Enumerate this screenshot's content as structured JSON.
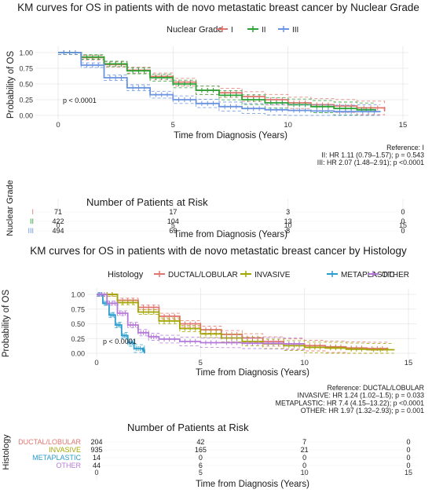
{
  "chart_data": [
    {
      "type": "line",
      "subtype": "kaplan-meier",
      "title": "KM curves for OS in patients with de novo metastatic breast cancer by Nuclear Grade",
      "legend_title": "Nuclear Grade",
      "legend_position": "top",
      "xlabel": "Time from Diagnosis (Years)",
      "ylabel": "Probability of OS",
      "xlim": [
        0,
        15
      ],
      "ylim": [
        0,
        1
      ],
      "x_ticks": [
        "0",
        "5",
        "10",
        "15"
      ],
      "y_ticks": [
        "0.00",
        "0.25",
        "0.50",
        "0.75",
        "1.00"
      ],
      "grid": true,
      "pvalue": "p < 0.0001",
      "series": [
        {
          "name": "I",
          "color": "#e0756f",
          "x": [
            0,
            1,
            2,
            3,
            4,
            5,
            6,
            7,
            8,
            9,
            10,
            11,
            12,
            13,
            14.2,
            14.2
          ],
          "y": [
            1.0,
            0.92,
            0.81,
            0.72,
            0.62,
            0.53,
            0.4,
            0.36,
            0.3,
            0.25,
            0.2,
            0.17,
            0.15,
            0.12,
            0.1,
            0.07
          ]
        },
        {
          "name": "II",
          "color": "#2aa335",
          "x": [
            0,
            1,
            2,
            3,
            4,
            5,
            6,
            7,
            8,
            9,
            10,
            11,
            12,
            13,
            13.8
          ],
          "y": [
            1.0,
            0.93,
            0.82,
            0.71,
            0.6,
            0.5,
            0.4,
            0.32,
            0.25,
            0.2,
            0.17,
            0.14,
            0.11,
            0.09,
            0.07
          ]
        },
        {
          "name": "III",
          "color": "#6a93e0",
          "x": [
            0,
            1,
            2,
            3,
            4,
            5,
            6,
            7,
            8,
            9,
            10,
            11,
            12,
            13,
            14
          ],
          "y": [
            1.0,
            0.8,
            0.6,
            0.44,
            0.33,
            0.25,
            0.19,
            0.14,
            0.11,
            0.09,
            0.08,
            0.07,
            0.06,
            0.06,
            0.05
          ]
        }
      ],
      "reference": [
        "Reference: I",
        "II: HR 1.11 (0.79–1.57); p = 0.543",
        "III: HR 2.07 (1.48–2.91); p <0.0001"
      ],
      "risk_table": {
        "title": "Number of Patients at Risk",
        "ylabel": "Nuclear Grade",
        "xlabel": "Time from Diagnosis (Years)",
        "times": [
          "0",
          "5",
          "10",
          "15"
        ],
        "rows": [
          {
            "label": "I",
            "color": "#e0756f",
            "counts": [
              "71",
              "17",
              "3",
              "0"
            ]
          },
          {
            "label": "II",
            "color": "#2aa335",
            "counts": [
              "422",
              "104",
              "13",
              "0"
            ]
          },
          {
            "label": "III",
            "color": "#6a93e0",
            "counts": [
              "494",
              "69",
              "8",
              "0"
            ]
          }
        ]
      }
    },
    {
      "type": "line",
      "subtype": "kaplan-meier",
      "title": "KM curves for OS in patients with de novo metastatic breast cancer by Histology",
      "legend_title": "Histology",
      "legend_position": "top",
      "xlabel": "Time from Diagnosis (Years)",
      "ylabel": "Probability of OS",
      "xlim": [
        0,
        15
      ],
      "ylim": [
        0,
        1
      ],
      "x_ticks": [
        "0",
        "5",
        "10",
        "15"
      ],
      "y_ticks": [
        "0.00",
        "0.25",
        "0.50",
        "0.75",
        "1.00"
      ],
      "grid": true,
      "pvalue": "p < 0.0001",
      "series": [
        {
          "name": "DUCTAL/LOBULAR",
          "color": "#e0756f",
          "x": [
            0,
            1,
            2,
            3,
            4,
            5,
            6,
            7,
            8,
            9,
            10,
            11,
            12,
            13,
            14
          ],
          "y": [
            1.0,
            0.9,
            0.78,
            0.63,
            0.5,
            0.4,
            0.32,
            0.26,
            0.2,
            0.16,
            0.13,
            0.11,
            0.09,
            0.08,
            0.07
          ]
        },
        {
          "name": "INVASIVE",
          "color": "#a3a500",
          "x": [
            0,
            1,
            2,
            3,
            4,
            5,
            6,
            7,
            8,
            9,
            10,
            11,
            12,
            13,
            14.3
          ],
          "y": [
            1.0,
            0.86,
            0.7,
            0.55,
            0.42,
            0.33,
            0.26,
            0.2,
            0.16,
            0.13,
            0.1,
            0.09,
            0.07,
            0.06,
            0.05
          ]
        },
        {
          "name": "METAPLASTIC",
          "color": "#2a9dcf",
          "x": [
            0,
            0.3,
            0.6,
            0.9,
            1.2,
            1.5,
            1.8,
            2.2,
            2.3
          ],
          "y": [
            1.0,
            0.85,
            0.65,
            0.48,
            0.3,
            0.18,
            0.08,
            0.06,
            0.0
          ]
        },
        {
          "name": "OTHER",
          "color": "#b57ad9",
          "x": [
            0,
            0.5,
            1,
            1.5,
            2,
            2.5,
            3,
            4,
            5,
            6,
            7,
            8,
            9,
            10
          ],
          "y": [
            1.0,
            0.85,
            0.68,
            0.48,
            0.35,
            0.28,
            0.24,
            0.2,
            0.18,
            0.18,
            0.17,
            0.17,
            0.16,
            0.16
          ]
        }
      ],
      "reference": [
        "Reference: DUCTAL/LOBULAR",
        "INVASIVE: HR 1.24 (1.02–1.5); p = 0.033",
        "METAPLASTIC: HR 7.4 (4.15–13.22); p <0.0001",
        "OTHER: HR 1.97 (1.32–2.93); p = 0.001"
      ],
      "risk_table": {
        "title": "Number of Patients at Risk",
        "ylabel": "Histology",
        "xlabel": "Time from Diagnosis (Years)",
        "times": [
          "0",
          "5",
          "10",
          "15"
        ],
        "rows": [
          {
            "label": "DUCTAL/LOBULAR",
            "color": "#e0756f",
            "counts": [
              "204",
              "42",
              "7",
              "0"
            ]
          },
          {
            "label": "INVASIVE",
            "color": "#a3a500",
            "counts": [
              "935",
              "165",
              "21",
              "0"
            ]
          },
          {
            "label": "METAPLASTIC",
            "color": "#2a9dcf",
            "counts": [
              "14",
              "0",
              "0",
              "0"
            ]
          },
          {
            "label": "OTHER",
            "color": "#b57ad9",
            "counts": [
              "44",
              "6",
              "0",
              "0"
            ]
          }
        ]
      }
    }
  ]
}
